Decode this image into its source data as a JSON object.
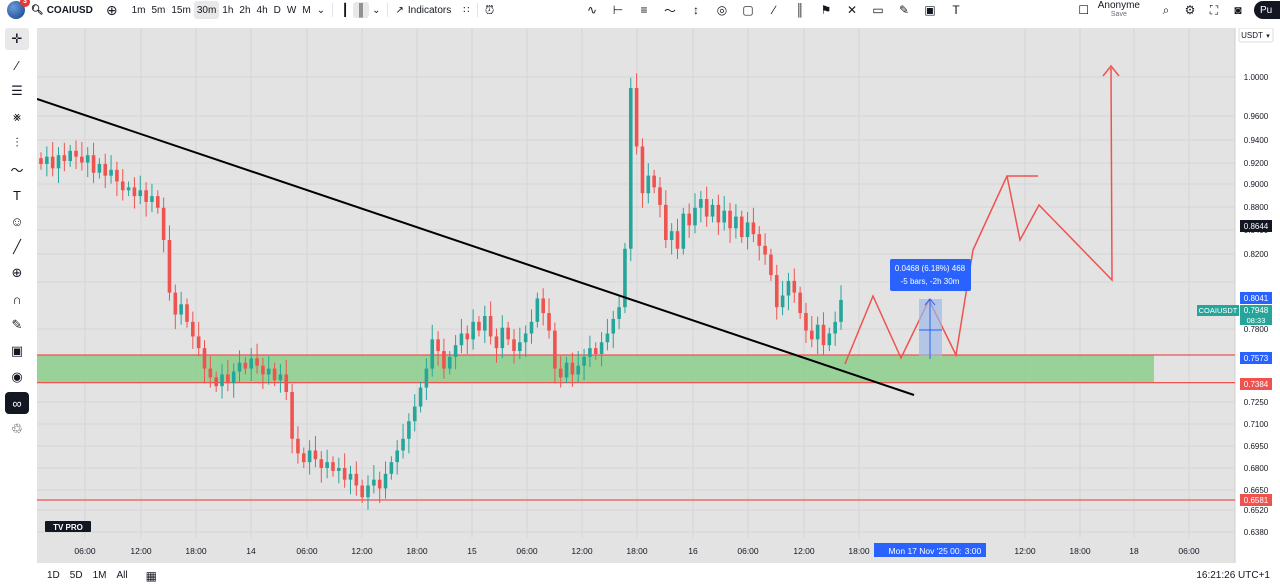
{
  "toolbar": {
    "symbol": "COAIUSD",
    "notification_count": "3",
    "intervals": [
      "1m",
      "5m",
      "15m",
      "30m",
      "1h",
      "2h",
      "4h",
      "D",
      "W",
      "M"
    ],
    "active_interval": "30m",
    "indicators_label": "Indicators",
    "account_name": "Anonyme",
    "account_sub": "Save",
    "publish_label": "Pu"
  },
  "chart": {
    "currency_label": "USDT",
    "watermark": "TV PRO",
    "symbol_tag": "COAIUSDT",
    "last_price": "0.7948",
    "countdown": "08:33",
    "measure": {
      "line1": "0.0468 (6.18%) 468",
      "line2": "-5 bars, -2h 30m"
    },
    "crosshair_time": "Mon 17 Nov '25   00:30",
    "time_after_crosshair": "3:00",
    "price_axis_ticks": [
      "1.0000",
      "0.9600",
      "0.9400",
      "0.9200",
      "0.9000",
      "0.8800",
      "0.8400",
      "0.8200",
      "0.7800",
      "0.7250",
      "0.7100",
      "0.6950",
      "0.6800",
      "0.6650",
      "0.6520",
      "0.6380"
    ],
    "price_tags": [
      {
        "label": "0.8644",
        "style": "dark"
      },
      {
        "label": "0.8041",
        "style": "blue"
      },
      {
        "label": "0.7573",
        "style": "blue"
      },
      {
        "label": "0.7384",
        "style": "red"
      },
      {
        "label": "0.6581",
        "style": "red"
      }
    ],
    "time_axis_labels": [
      "06:00",
      "12:00",
      "18:00",
      "14",
      "06:00",
      "12:00",
      "18:00",
      "15",
      "06:00",
      "12:00",
      "18:00",
      "16",
      "06:00",
      "12:00",
      "18:00",
      "12:00",
      "18:00",
      "18",
      "06:00"
    ],
    "support_zone": {
      "top": 0.7573,
      "bottom": 0.7384
    },
    "horizontal_levels": [
      0.7573,
      0.7384,
      0.6581
    ],
    "colors": {
      "up": "#26a69a",
      "down": "#ef5350",
      "zone": "#8ccf8c",
      "level": "#ef5350",
      "projection": "#ef5350",
      "trendline": "#000000",
      "background": "#e3e3e3"
    }
  },
  "bottombar": {
    "ranges": [
      "1D",
      "5D",
      "1M",
      "All"
    ],
    "clock": "16:21:26 UTC+1"
  }
}
